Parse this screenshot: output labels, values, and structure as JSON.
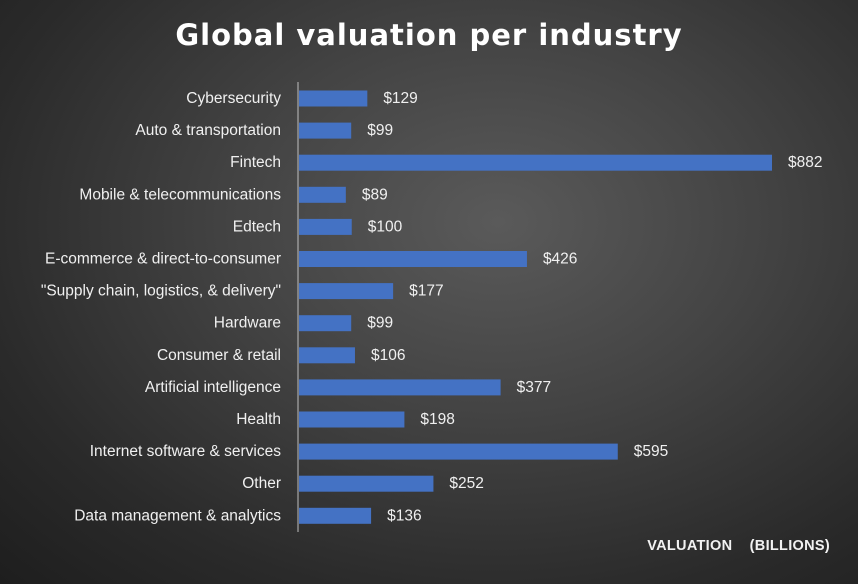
{
  "chart_data": {
    "type": "bar",
    "orientation": "horizontal",
    "title": "Global valuation per industry",
    "xlabel": "VALUATION    (BILLIONS)",
    "ylabel": "",
    "value_prefix": "$",
    "categories": [
      "Cybersecurity",
      "Auto & transportation",
      "Fintech",
      "Mobile & telecommunications",
      "Edtech",
      "E-commerce & direct-to-consumer",
      "\"Supply chain, logistics, & delivery\"",
      "Hardware",
      "Consumer & retail",
      "Artificial intelligence",
      "Health",
      "Internet software & services",
      "Other",
      "Data management & analytics"
    ],
    "values": [
      129,
      99,
      882,
      89,
      100,
      426,
      177,
      99,
      106,
      377,
      198,
      595,
      252,
      136
    ],
    "xlim": [
      0,
      882
    ],
    "grid": false,
    "legend": "none",
    "bar_color": "#4472C4",
    "background_color": "#404040"
  }
}
